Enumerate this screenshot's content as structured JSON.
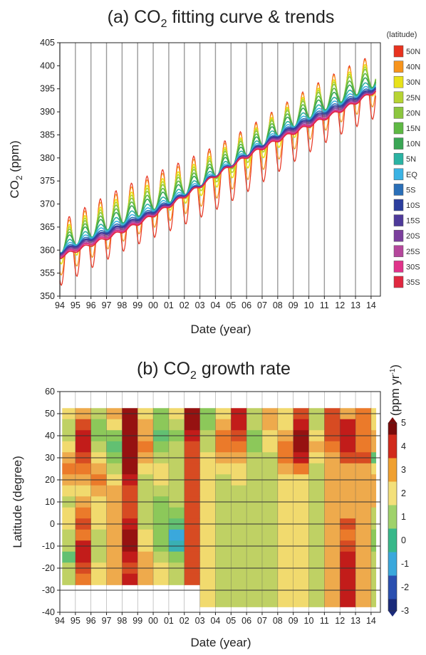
{
  "chart_data": [
    {
      "type": "line",
      "title": "(a) CO2 fitting curve & trends",
      "title_main": "(a) CO",
      "title_sub": "2",
      "title_rest": " fitting curve & trends",
      "xlabel": "Date (year)",
      "ylabel": "CO2 (ppm)",
      "ylabel_main": "CO",
      "ylabel_sub": "2",
      "ylabel_rest": " (ppm)",
      "xlim": [
        1994,
        2014.6
      ],
      "ylim": [
        350,
        405
      ],
      "yticks": [
        350,
        355,
        360,
        365,
        370,
        375,
        380,
        385,
        390,
        395,
        400,
        405
      ],
      "xticks": [
        "94",
        "95",
        "96",
        "97",
        "98",
        "99",
        "00",
        "01",
        "02",
        "03",
        "04",
        "05",
        "06",
        "07",
        "08",
        "09",
        "10",
        "11",
        "12",
        "13",
        "14"
      ],
      "grid": "vertical",
      "legend_title": "(latitude)",
      "legend_position": "right",
      "series": [
        {
          "name": "50N",
          "color": "#e8331f",
          "start": 359.2,
          "end": 395.5,
          "amp": 7.0
        },
        {
          "name": "40N",
          "color": "#f7941d",
          "start": 359.8,
          "end": 396.8,
          "amp": 5.5
        },
        {
          "name": "30N",
          "color": "#e8e21a",
          "start": 360.4,
          "end": 397.6,
          "amp": 3.8
        },
        {
          "name": "25N",
          "color": "#b7d433",
          "start": 360.6,
          "end": 398.0,
          "amp": 3.0
        },
        {
          "name": "20N",
          "color": "#8cc63f",
          "start": 360.6,
          "end": 398.2,
          "amp": 2.4
        },
        {
          "name": "15N",
          "color": "#5fb944",
          "start": 360.4,
          "end": 397.9,
          "amp": 1.9
        },
        {
          "name": "10N",
          "color": "#3aa655",
          "start": 360.1,
          "end": 397.5,
          "amp": 1.5
        },
        {
          "name": "5N",
          "color": "#2bb3a3",
          "start": 359.6,
          "end": 397.0,
          "amp": 1.0
        },
        {
          "name": "EQ",
          "color": "#3bb3e4",
          "start": 359.2,
          "end": 396.6,
          "amp": 0.7
        },
        {
          "name": "5S",
          "color": "#2a6fb8",
          "start": 358.9,
          "end": 396.3,
          "amp": 0.5
        },
        {
          "name": "10S",
          "color": "#2c3e9e",
          "start": 358.7,
          "end": 396.1,
          "amp": 0.4
        },
        {
          "name": "15S",
          "color": "#4e3a9a",
          "start": 358.6,
          "end": 395.9,
          "amp": 0.4
        },
        {
          "name": "20S",
          "color": "#7b3f9d",
          "start": 358.4,
          "end": 395.7,
          "amp": 0.4
        },
        {
          "name": "25S",
          "color": "#b5479c",
          "start": 358.2,
          "end": 395.5,
          "amp": 0.4
        },
        {
          "name": "30S",
          "color": "#e0338a",
          "start": 358.1,
          "end": 395.4,
          "amp": 0.4
        },
        {
          "name": "35S",
          "color": "#e02840",
          "start": 357.9,
          "end": 395.3,
          "amp": 0.4
        }
      ]
    },
    {
      "type": "heatmap",
      "title": "(b) CO2 growth rate",
      "title_main": "(b) CO",
      "title_sub": "2",
      "title_rest": " growth rate",
      "xlabel": "Date (year)",
      "ylabel": "Latitude (degree)",
      "xlim": [
        1994,
        2014.6
      ],
      "ylim": [
        -40,
        60
      ],
      "yticks": [
        -40,
        -30,
        -20,
        -10,
        0,
        10,
        20,
        30,
        40,
        50,
        60
      ],
      "xticks": [
        "94",
        "95",
        "96",
        "97",
        "98",
        "99",
        "00",
        "01",
        "02",
        "03",
        "04",
        "05",
        "06",
        "07",
        "08",
        "09",
        "10",
        "11",
        "12",
        "13",
        "14"
      ],
      "grid": "horizontal",
      "colorbar_label": "(ppm yr-1)",
      "colorbar_label_main": "(ppm yr",
      "colorbar_label_sup": "-1",
      "colorbar_label_end": ")",
      "colorbar_ticks": [
        5,
        4,
        3,
        2,
        1,
        0,
        -1,
        -2,
        -3
      ],
      "colorbar_colors": [
        "#7a0a0a",
        "#d12a1c",
        "#f0a030",
        "#f3e07a",
        "#9fd26a",
        "#38b88a",
        "#3aa8dc",
        "#2a4fb0",
        "#1a2a7a"
      ],
      "years": [
        1994.5,
        1995.5,
        1996.5,
        1997.5,
        1998.5,
        1999.5,
        2000.5,
        2001.5,
        2002.5,
        2003.5,
        2004.5,
        2005.5,
        2006.5,
        2007.5,
        2008.5,
        2009.5,
        2010.5,
        2011.5,
        2012.5,
        2013.5,
        2014.5
      ],
      "latitudes": [
        50,
        45,
        40,
        35,
        30,
        25,
        20,
        15,
        10,
        5,
        0,
        -5,
        -10,
        -15,
        -20,
        -25,
        -30,
        -35
      ],
      "values": [
        [
          2.0,
          2.5,
          1.5,
          2.5,
          4.5,
          2.0,
          1.0,
          2.0,
          4.5,
          1.0,
          2.0,
          4.0,
          1.5,
          2.5,
          2.0,
          3.5,
          1.5,
          3.5,
          2.5,
          3.0,
          2.0
        ],
        [
          1.5,
          3.5,
          1.0,
          2.0,
          4.5,
          2.5,
          1.0,
          1.5,
          4.5,
          1.0,
          2.5,
          4.0,
          1.5,
          2.5,
          2.0,
          4.0,
          1.5,
          3.5,
          4.0,
          3.0,
          2.0
        ],
        [
          1.5,
          4.0,
          1.0,
          1.0,
          4.5,
          2.5,
          0.5,
          1.0,
          4.0,
          1.5,
          3.0,
          3.5,
          1.0,
          2.0,
          2.5,
          4.5,
          2.0,
          3.5,
          4.0,
          3.0,
          2.5
        ],
        [
          2.0,
          4.0,
          1.5,
          0.5,
          4.5,
          3.0,
          1.0,
          1.5,
          3.5,
          1.5,
          3.0,
          3.0,
          1.0,
          2.0,
          3.0,
          4.5,
          2.5,
          3.0,
          4.0,
          3.0,
          2.5
        ],
        [
          2.5,
          3.5,
          2.0,
          1.0,
          4.5,
          2.5,
          1.5,
          1.5,
          3.5,
          2.0,
          2.5,
          2.5,
          1.5,
          1.5,
          3.0,
          4.0,
          2.0,
          2.5,
          3.5,
          3.5,
          0.5
        ],
        [
          3.0,
          3.0,
          2.5,
          1.5,
          4.5,
          2.0,
          2.0,
          1.5,
          3.5,
          2.0,
          2.0,
          2.0,
          1.5,
          1.5,
          2.5,
          3.0,
          1.5,
          2.5,
          2.5,
          2.5,
          2.0
        ],
        [
          2.5,
          2.5,
          3.0,
          2.0,
          4.0,
          1.5,
          2.0,
          1.5,
          3.5,
          2.0,
          1.5,
          2.0,
          1.5,
          1.5,
          2.0,
          2.0,
          1.5,
          2.5,
          2.5,
          2.5,
          2.5
        ],
        [
          2.0,
          2.0,
          2.5,
          2.5,
          3.5,
          1.5,
          1.5,
          1.5,
          3.5,
          2.0,
          1.5,
          1.5,
          1.5,
          1.5,
          2.0,
          2.0,
          1.5,
          2.5,
          2.5,
          2.5,
          2.5
        ],
        [
          1.5,
          2.5,
          2.0,
          2.5,
          3.5,
          1.5,
          1.0,
          1.5,
          3.5,
          2.0,
          1.5,
          1.5,
          1.5,
          1.5,
          2.0,
          2.0,
          1.5,
          2.5,
          2.5,
          2.5,
          2.5
        ],
        [
          2.0,
          3.0,
          2.0,
          2.5,
          3.5,
          1.5,
          1.0,
          1.0,
          3.5,
          2.0,
          1.5,
          1.5,
          1.5,
          1.5,
          2.0,
          2.0,
          1.5,
          2.5,
          2.5,
          2.5,
          1.5
        ],
        [
          2.0,
          3.5,
          2.0,
          2.5,
          4.0,
          1.5,
          1.0,
          0.5,
          3.5,
          2.0,
          1.5,
          1.5,
          1.5,
          1.5,
          2.0,
          2.0,
          1.5,
          2.5,
          3.5,
          2.5,
          1.5
        ],
        [
          1.5,
          3.0,
          1.5,
          2.5,
          4.5,
          2.0,
          1.0,
          -1.0,
          3.5,
          2.0,
          1.5,
          1.5,
          1.5,
          1.5,
          2.0,
          2.0,
          1.5,
          2.5,
          3.0,
          2.5,
          1.0
        ],
        [
          1.5,
          4.0,
          1.5,
          2.5,
          4.5,
          2.0,
          1.0,
          -0.5,
          3.5,
          2.0,
          1.5,
          1.5,
          1.5,
          1.5,
          2.0,
          2.0,
          1.5,
          2.5,
          3.5,
          2.5,
          1.0
        ],
        [
          0.5,
          4.0,
          1.5,
          2.5,
          4.0,
          2.5,
          1.5,
          1.0,
          3.5,
          2.0,
          1.5,
          1.5,
          1.5,
          1.5,
          2.0,
          2.0,
          1.5,
          2.5,
          4.0,
          2.5,
          1.5
        ],
        [
          1.5,
          3.5,
          2.0,
          2.5,
          3.5,
          2.5,
          2.0,
          1.5,
          3.5,
          2.0,
          1.5,
          1.5,
          1.5,
          1.5,
          2.0,
          2.0,
          1.5,
          2.5,
          4.0,
          2.5,
          1.5
        ],
        [
          1.5,
          3.0,
          2.0,
          2.5,
          4.0,
          2.5,
          2.0,
          1.5,
          3.5,
          2.0,
          1.5,
          1.5,
          1.5,
          1.5,
          2.0,
          2.0,
          1.5,
          2.5,
          4.0,
          2.5,
          1.5
        ],
        [
          null,
          null,
          null,
          null,
          null,
          null,
          null,
          null,
          null,
          2.0,
          1.5,
          1.5,
          1.5,
          1.5,
          2.0,
          2.0,
          1.5,
          2.5,
          4.0,
          2.5,
          1.5
        ],
        [
          null,
          null,
          null,
          null,
          null,
          null,
          null,
          null,
          null,
          2.0,
          1.5,
          1.5,
          1.5,
          1.5,
          2.0,
          2.0,
          1.5,
          2.5,
          4.0,
          2.5,
          1.5
        ]
      ]
    }
  ]
}
